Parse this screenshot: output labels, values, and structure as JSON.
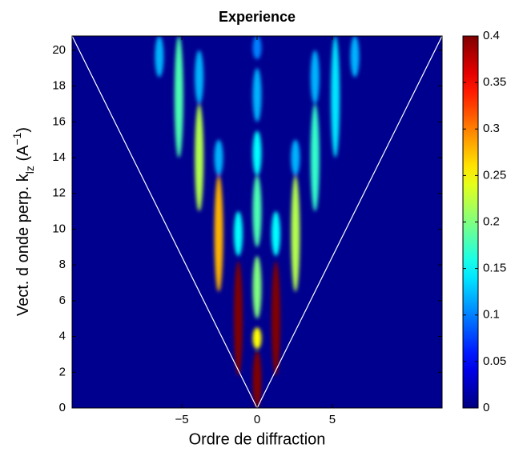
{
  "chart_data": {
    "type": "heatmap",
    "title": "Experience",
    "xlabel": "Ordre de diffraction",
    "ylabel": {
      "text": "Vect. d onde perp. k",
      "sub": "lz",
      "mid": " (A",
      "sup": "−1",
      "end": ")"
    },
    "xlim": [
      -12.3,
      12.3
    ],
    "ylim": [
      0,
      20.8
    ],
    "xticks": [
      {
        "value": -5,
        "label": "−5"
      },
      0,
      5
    ],
    "yticks": [
      0,
      2,
      4,
      6,
      8,
      10,
      12,
      14,
      16,
      18,
      20
    ],
    "clim": [
      0,
      0.4
    ],
    "cticks": [
      0,
      0.05,
      0.1,
      0.15,
      0.2,
      0.25,
      0.3,
      0.35,
      0.4
    ],
    "colormap": "jet",
    "streaks": [
      {
        "x": 0,
        "y0": 0,
        "y1": 3.2,
        "value": 0.4
      },
      {
        "x": 0,
        "y0": 3.3,
        "y1": 4.5,
        "value": 0.25
      },
      {
        "x": 0,
        "y0": 5,
        "y1": 8.5,
        "value": 0.2
      },
      {
        "x": 0,
        "y0": 9,
        "y1": 13,
        "value": 0.18
      },
      {
        "x": 0,
        "y0": 13,
        "y1": 15.5,
        "value": 0.15
      },
      {
        "x": 0,
        "y0": 16,
        "y1": 19,
        "value": 0.12
      },
      {
        "x": 0,
        "y0": 19.5,
        "y1": 20.8,
        "value": 0.1
      },
      {
        "x": -1.25,
        "y0": 1.8,
        "y1": 8.2,
        "value": 0.4
      },
      {
        "x": 1.25,
        "y0": 1.8,
        "y1": 8.2,
        "value": 0.4
      },
      {
        "x": -1.25,
        "y0": 8.5,
        "y1": 11,
        "value": 0.15
      },
      {
        "x": 1.25,
        "y0": 8.5,
        "y1": 11,
        "value": 0.15
      },
      {
        "x": -2.55,
        "y0": 6.5,
        "y1": 13,
        "value": 0.28
      },
      {
        "x": 2.55,
        "y0": 6.5,
        "y1": 13,
        "value": 0.22
      },
      {
        "x": -2.55,
        "y0": 13,
        "y1": 15,
        "value": 0.12
      },
      {
        "x": 2.55,
        "y0": 13,
        "y1": 15,
        "value": 0.12
      },
      {
        "x": -3.85,
        "y0": 11,
        "y1": 17,
        "value": 0.22
      },
      {
        "x": 3.85,
        "y0": 11,
        "y1": 17,
        "value": 0.17
      },
      {
        "x": -3.85,
        "y0": 17,
        "y1": 20,
        "value": 0.12
      },
      {
        "x": 3.85,
        "y0": 17,
        "y1": 20,
        "value": 0.12
      },
      {
        "x": -5.2,
        "y0": 14,
        "y1": 20.8,
        "value": 0.18
      },
      {
        "x": 5.2,
        "y0": 14,
        "y1": 20.8,
        "value": 0.14
      },
      {
        "x": -6.5,
        "y0": 18.5,
        "y1": 20.8,
        "value": 0.12
      },
      {
        "x": 6.5,
        "y0": 18.5,
        "y1": 20.8,
        "value": 0.12
      }
    ],
    "guide_lines": [
      {
        "x": [
          0,
          -12.3
        ],
        "y": [
          0,
          20.8
        ]
      },
      {
        "x": [
          0,
          12.3
        ],
        "y": [
          0,
          20.8
        ]
      }
    ]
  }
}
